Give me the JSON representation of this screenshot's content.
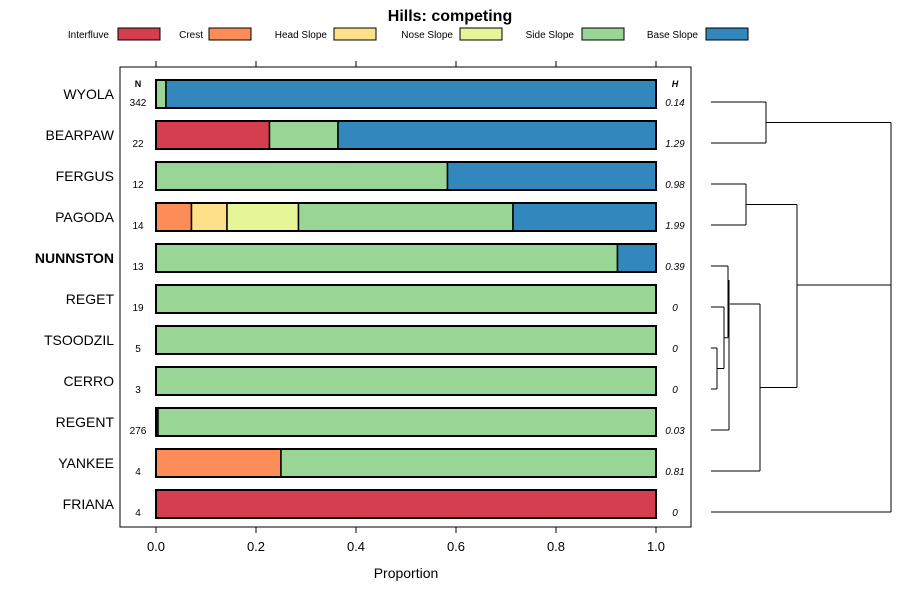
{
  "chart_data": {
    "type": "bar",
    "subtype": "stacked-horizontal-proportion",
    "title": "Hills: competing",
    "xlabel": "Proportion",
    "ylabel": "",
    "xlim": [
      0,
      1
    ],
    "x_ticks": [
      "0.0",
      "0.2",
      "0.4",
      "0.6",
      "0.8",
      "1.0"
    ],
    "legend": [
      {
        "name": "Interfluve",
        "color": "#D53E4F"
      },
      {
        "name": "Crest",
        "color": "#FC8D59"
      },
      {
        "name": "Head Slope",
        "color": "#FEE08B"
      },
      {
        "name": "Nose Slope",
        "color": "#E6F598"
      },
      {
        "name": "Side Slope",
        "color": "#99D594"
      },
      {
        "name": "Base Slope",
        "color": "#3288BD"
      }
    ],
    "legend_position": "top",
    "n_header": "N",
    "h_header": "H",
    "rows": [
      {
        "name": "WYOLA",
        "n": "342",
        "h": "0.14",
        "bold": false,
        "values": [
          0,
          0,
          0,
          0,
          0.02,
          0.98
        ]
      },
      {
        "name": "BEARPAW",
        "n": "22",
        "h": "1.29",
        "bold": false,
        "values": [
          0.227,
          0,
          0,
          0,
          0.137,
          0.636
        ]
      },
      {
        "name": "FERGUS",
        "n": "12",
        "h": "0.98",
        "bold": false,
        "values": [
          0,
          0,
          0,
          0,
          0.583,
          0.417
        ]
      },
      {
        "name": "PAGODA",
        "n": "14",
        "h": "1.99",
        "bold": false,
        "values": [
          0,
          0.071,
          0.071,
          0.143,
          0.429,
          0.286
        ]
      },
      {
        "name": "NUNNSTON",
        "n": "13",
        "h": "0.39",
        "bold": true,
        "values": [
          0,
          0,
          0,
          0,
          0.923,
          0.077
        ]
      },
      {
        "name": "REGET",
        "n": "19",
        "h": "0",
        "bold": false,
        "values": [
          0,
          0,
          0,
          0,
          1,
          0
        ]
      },
      {
        "name": "TSOODZIL",
        "n": "5",
        "h": "0",
        "bold": false,
        "values": [
          0,
          0,
          0,
          0,
          1,
          0
        ]
      },
      {
        "name": "CERRO",
        "n": "3",
        "h": "0",
        "bold": false,
        "values": [
          0,
          0,
          0,
          0,
          1,
          0
        ]
      },
      {
        "name": "REGENT",
        "n": "276",
        "h": "0.03",
        "bold": false,
        "values": [
          0.004,
          0,
          0,
          0,
          0.996,
          0
        ]
      },
      {
        "name": "YANKEE",
        "n": "4",
        "h": "0.81",
        "bold": false,
        "values": [
          0,
          0.25,
          0,
          0,
          0.75,
          0
        ]
      },
      {
        "name": "FRIANA",
        "n": "4",
        "h": "0",
        "bold": false,
        "values": [
          1,
          0,
          0,
          0,
          0,
          0
        ]
      }
    ]
  }
}
